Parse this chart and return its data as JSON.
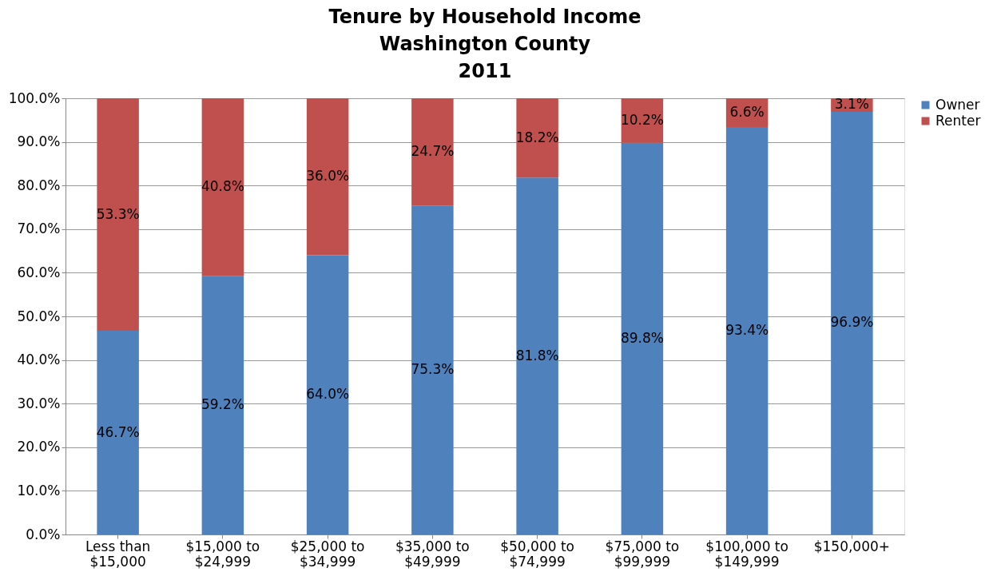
{
  "chart_data": {
    "type": "bar",
    "title": "Tenure by Household Income\nWashington County\n2011",
    "categories": [
      "Less than\n$15,000",
      "$15,000 to\n$24,999",
      "$25,000 to\n$34,999",
      "$35,000 to\n$49,999",
      "$50,000 to\n$74,999",
      "$75,000 to\n$99,999",
      "$100,000 to\n$149,999",
      "$150,000+"
    ],
    "series": [
      {
        "name": "Owner",
        "color": "#4f81bd",
        "values": [
          46.7,
          59.2,
          64.0,
          75.3,
          81.8,
          89.8,
          93.4,
          96.9
        ],
        "value_labels": [
          "46.7%",
          "59.2%",
          "64.0%",
          "75.3%",
          "81.8%",
          "89.8%",
          "93.4%",
          "96.9%"
        ]
      },
      {
        "name": "Renter",
        "color": "#c0504d",
        "values": [
          53.3,
          40.8,
          36.0,
          24.7,
          18.2,
          10.2,
          6.6,
          3.1
        ],
        "value_labels": [
          "53.3%",
          "40.8%",
          "36.0%",
          "24.7%",
          "18.2%",
          "10.2%",
          "6.6%",
          "3.1%"
        ]
      }
    ],
    "stacked": true,
    "ylim": [
      0,
      100
    ],
    "yticks": [
      {
        "value": 0,
        "label": "0.0%"
      },
      {
        "value": 10,
        "label": "10.0%"
      },
      {
        "value": 20,
        "label": "20.0%"
      },
      {
        "value": 30,
        "label": "30.0%"
      },
      {
        "value": 40,
        "label": "40.0%"
      },
      {
        "value": 50,
        "label": "50.0%"
      },
      {
        "value": 60,
        "label": "60.0%"
      },
      {
        "value": 70,
        "label": "70.0%"
      },
      {
        "value": 80,
        "label": "80.0%"
      },
      {
        "value": 90,
        "label": "90.0%"
      },
      {
        "value": 100,
        "label": "100.0%"
      }
    ],
    "grid": "y",
    "legend": "right"
  }
}
